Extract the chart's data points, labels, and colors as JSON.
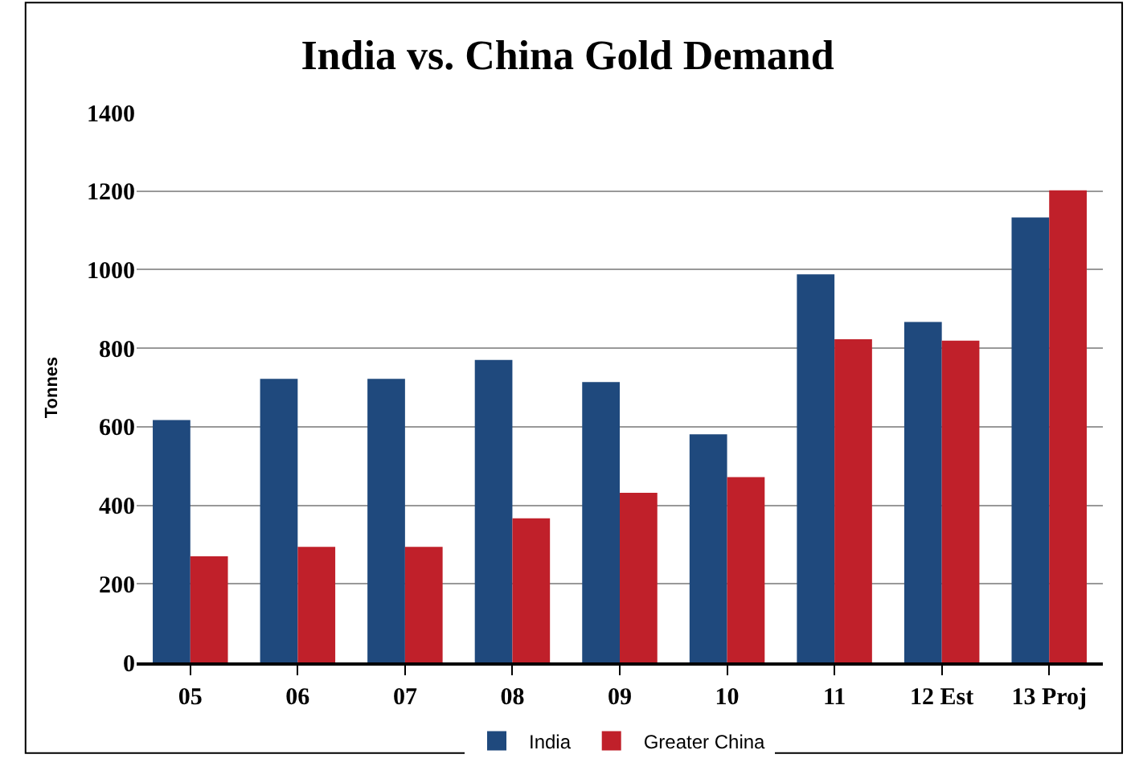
{
  "chart_data": {
    "type": "bar",
    "title": "India vs. China Gold Demand",
    "ylabel": "Tonnes",
    "categories": [
      "05",
      "06",
      "07",
      "08",
      "09",
      "10",
      "11",
      "12 Est",
      "13 Proj"
    ],
    "series": [
      {
        "name": "India",
        "color": "#1f497d",
        "values": [
          617,
          722,
          722,
          770,
          714,
          581,
          988,
          867,
          1133
        ]
      },
      {
        "name": "Greater China",
        "color": "#c0202a",
        "values": [
          270,
          294,
          294,
          367,
          432,
          472,
          823,
          819,
          1202
        ]
      }
    ],
    "ylim": [
      0,
      1400
    ],
    "yticks": [
      0,
      200,
      400,
      600,
      800,
      1000,
      1200,
      1400
    ],
    "grid": "y",
    "legend": "bottom"
  }
}
